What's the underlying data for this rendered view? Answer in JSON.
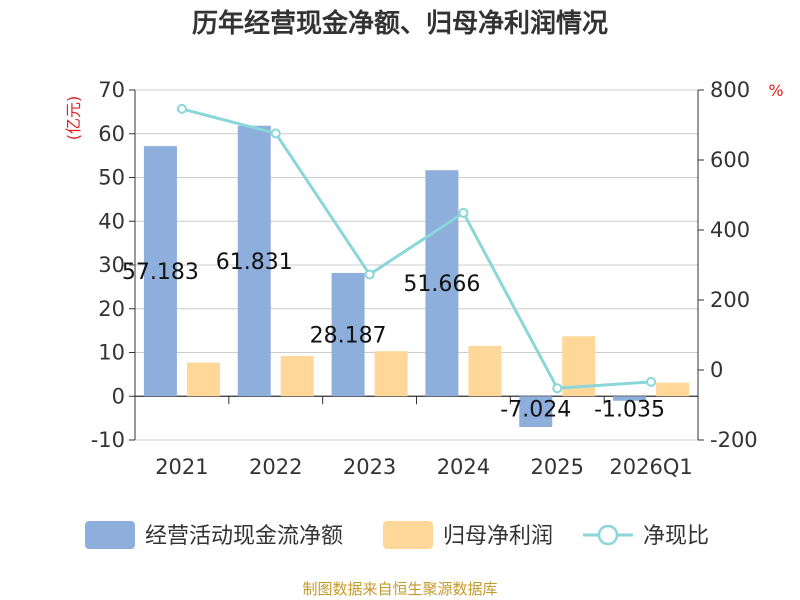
{
  "chart_data": {
    "type": "bar",
    "title": "历年经营现金净额、归母净利润情况",
    "categories": [
      "2021",
      "2022",
      "2023",
      "2024",
      "2025",
      "2026Q1"
    ],
    "series": [
      {
        "name": "经营活动现金流净额",
        "type": "bar",
        "axis": "left",
        "color": "#8eaedb",
        "values": [
          57.183,
          61.831,
          28.187,
          51.666,
          -7.024,
          -1.035
        ]
      },
      {
        "name": "归母净利润",
        "type": "bar",
        "axis": "left",
        "color": "#ffd899",
        "values": [
          7.7,
          9.2,
          10.3,
          11.5,
          13.7,
          3.1
        ]
      },
      {
        "name": "净现比",
        "type": "line",
        "axis": "right",
        "color": "#8ad6d9",
        "values": [
          746,
          676,
          273,
          449,
          -52,
          -34
        ]
      }
    ],
    "data_labels": [
      "57.183",
      "61.831",
      "28.187",
      "51.666",
      "-7.024",
      "-1.035"
    ],
    "y_left": {
      "label": "(亿元)",
      "min": -10,
      "max": 70,
      "ticks": [
        -10,
        0,
        10,
        20,
        30,
        40,
        50,
        60,
        70
      ]
    },
    "y_right": {
      "label": "%",
      "min": -200,
      "max": 800,
      "ticks": [
        -200,
        0,
        200,
        400,
        600,
        800
      ]
    },
    "legend_position": "bottom",
    "grid": true
  },
  "source": "制图数据来自恒生聚源数据库"
}
